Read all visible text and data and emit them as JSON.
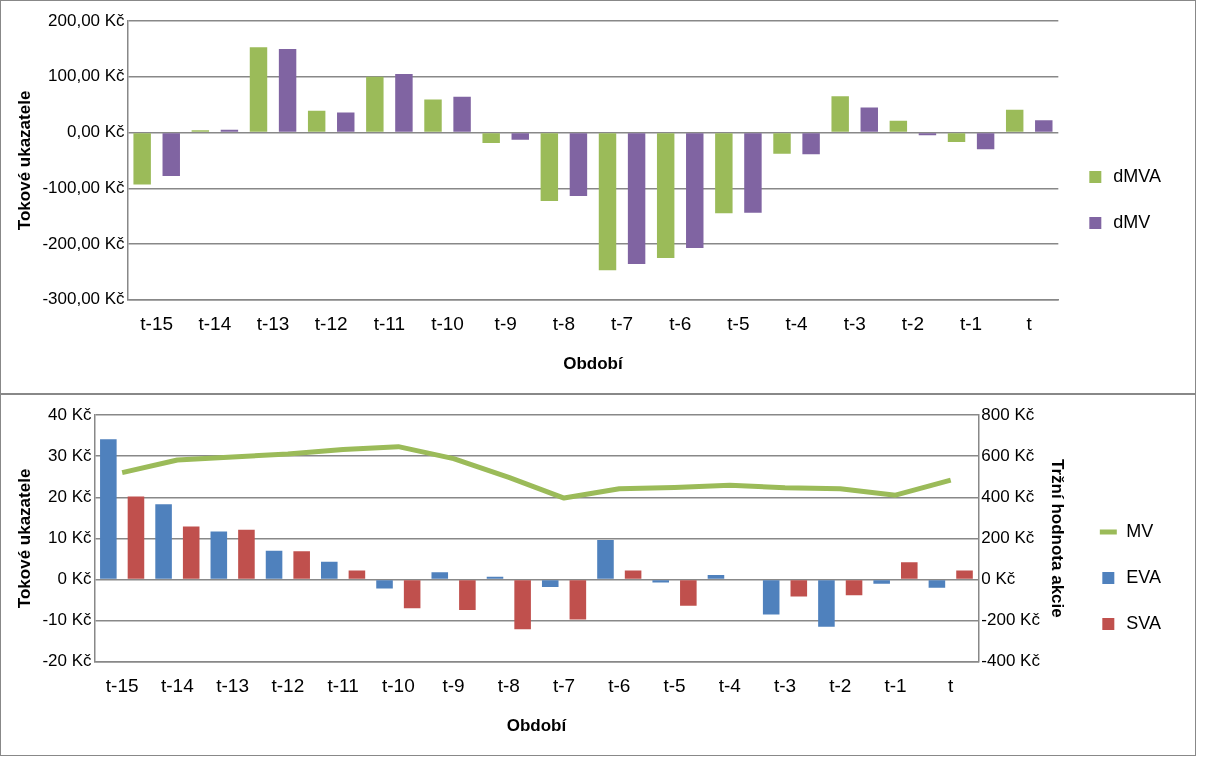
{
  "chart_data": [
    {
      "type": "bar",
      "xlabel": "Období",
      "ylabel": "Tokové ukazatele",
      "categories": [
        "t-15",
        "t-14",
        "t-13",
        "t-12",
        "t-11",
        "t-10",
        "t-9",
        "t-8",
        "t-7",
        "t-6",
        "t-5",
        "t-4",
        "t-3",
        "t-2",
        "t-1",
        "t"
      ],
      "series": [
        {
          "name": "dMVA",
          "color": "#9bbb59",
          "values": [
            -93,
            4,
            153,
            39,
            100,
            59,
            -19,
            -123,
            -247,
            -225,
            -145,
            -38,
            65,
            21,
            -17,
            41
          ]
        },
        {
          "name": "dMV",
          "color": "#8064a2",
          "values": [
            -78,
            5,
            150,
            36,
            105,
            64,
            -13,
            -114,
            -236,
            -207,
            -144,
            -39,
            45,
            -5,
            -30,
            22
          ]
        }
      ],
      "ylim": [
        -300,
        200
      ],
      "yticks": [
        {
          "value": -300,
          "label": "-300,00 Kč"
        },
        {
          "value": -200,
          "label": "-200,00 Kč"
        },
        {
          "value": -100,
          "label": "-100,00 Kč"
        },
        {
          "value": 0,
          "label": "0,00 Kč"
        },
        {
          "value": 100,
          "label": "100,00 Kč"
        },
        {
          "value": 200,
          "label": "200,00 Kč"
        }
      ],
      "grid": "y",
      "legend": "right"
    },
    {
      "type": "bar",
      "xlabel": "Období",
      "ylabel": "Tokové ukazatele",
      "y2label": "Tržní hodnota akcie",
      "categories": [
        "t-15",
        "t-14",
        "t-13",
        "t-12",
        "t-11",
        "t-10",
        "t-9",
        "t-8",
        "t-7",
        "t-6",
        "t-5",
        "t-4",
        "t-3",
        "t-2",
        "t-1",
        "t"
      ],
      "series": [
        {
          "name": "EVA",
          "color": "#4f81bd",
          "values": [
            34.1,
            18.3,
            11.7,
            7.0,
            4.3,
            -2.2,
            1.8,
            0.7,
            -1.8,
            9.6,
            -0.7,
            1.1,
            -8.5,
            -11.5,
            -1.0,
            -2.0
          ]
        },
        {
          "name": "SVA",
          "color": "#c0504d",
          "values": [
            20.2,
            12.9,
            12.1,
            6.9,
            2.2,
            -7.0,
            -7.4,
            -12.1,
            -9.7,
            2.2,
            -6.4,
            0.2,
            -4.1,
            -3.8,
            4.2,
            2.2
          ]
        },
        {
          "name": "MV",
          "type": "line",
          "axis": "y2",
          "color": "#9bbb59",
          "values": [
            520,
            581,
            596,
            610,
            632,
            646,
            588,
            497,
            396,
            441,
            448,
            458,
            446,
            441,
            410,
            483
          ]
        }
      ],
      "ylim": [
        -20,
        40
      ],
      "yticks": [
        {
          "value": -20,
          "label": "-20 Kč"
        },
        {
          "value": -10,
          "label": "-10 Kč"
        },
        {
          "value": 0,
          "label": "0 Kč"
        },
        {
          "value": 10,
          "label": "10 Kč"
        },
        {
          "value": 20,
          "label": "20 Kč"
        },
        {
          "value": 30,
          "label": "30 Kč"
        },
        {
          "value": 40,
          "label": "40 Kč"
        }
      ],
      "y2lim": [
        -400,
        800
      ],
      "y2ticks": [
        {
          "value": -400,
          "label": "-400 Kč"
        },
        {
          "value": -200,
          "label": "-200 Kč"
        },
        {
          "value": 0,
          "label": "0 Kč"
        },
        {
          "value": 200,
          "label": "200 Kč"
        },
        {
          "value": 400,
          "label": "400 Kč"
        },
        {
          "value": 600,
          "label": "600 Kč"
        },
        {
          "value": 800,
          "label": "800 Kč"
        }
      ],
      "grid": "y",
      "legend": "right",
      "marker": "none"
    }
  ]
}
